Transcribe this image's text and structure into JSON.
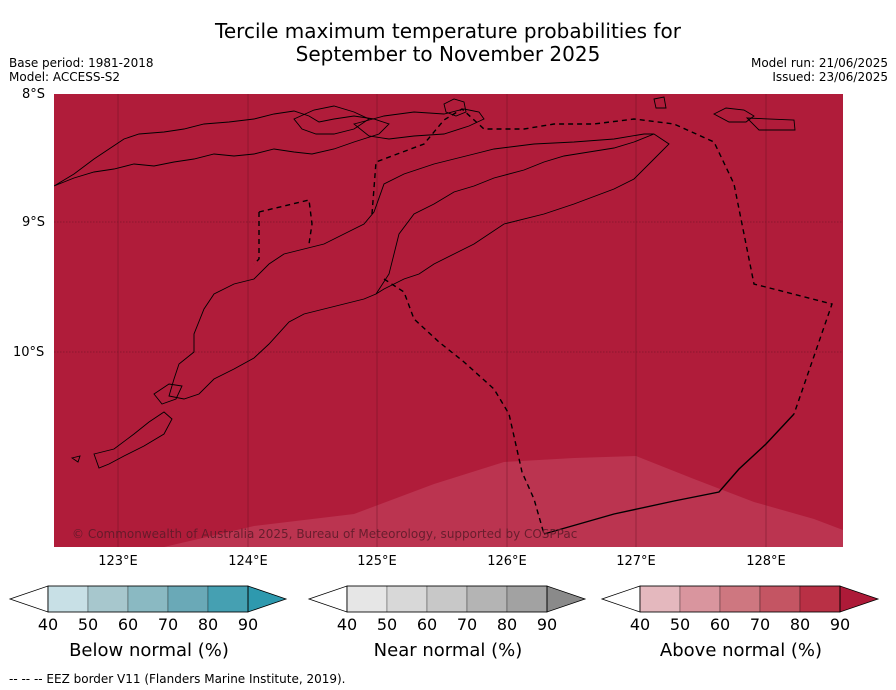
{
  "title": {
    "line1": "Tercile maximum temperature probabilities for",
    "line2": "September to November 2025"
  },
  "meta": {
    "base_period": "Base period: 1981-2018",
    "model": "Model: ACCESS-S2",
    "model_run": "Model run: 21/06/2025",
    "issued": "Issued: 23/06/2025"
  },
  "map": {
    "lat_labels": [
      "8°S",
      "9°S",
      "10°S"
    ],
    "lon_labels": [
      "123°E",
      "124°E",
      "125°E",
      "126°E",
      "127°E",
      "128°E"
    ],
    "copyright": "© Commonwealth of Australia 2025, Bureau of Meteorology, supported by COSPPac",
    "colors": {
      "above_90": "#b01c3a",
      "above_80": "#bb3450",
      "land_outline": "#000000",
      "eez": "#000000"
    }
  },
  "legends": [
    {
      "label": "Below normal (%)",
      "ticks": [
        "40",
        "50",
        "60",
        "70",
        "80",
        "90"
      ],
      "colors": [
        "#ffffff",
        "#c8e0e6",
        "#a7c7cd",
        "#8ab9c2",
        "#6aa9b7",
        "#45a0b2",
        "#2e99ae"
      ]
    },
    {
      "label": "Near normal (%)",
      "ticks": [
        "40",
        "50",
        "60",
        "70",
        "80",
        "90"
      ],
      "colors": [
        "#ffffff",
        "#e6e6e6",
        "#d8d8d8",
        "#c8c8c8",
        "#b4b4b4",
        "#a2a2a2",
        "#8a8a8a"
      ]
    },
    {
      "label": "Above normal (%)",
      "ticks": [
        "40",
        "50",
        "60",
        "70",
        "80",
        "90"
      ],
      "colors": [
        "#ffffff",
        "#e4b8be",
        "#d9959e",
        "#ce7780",
        "#c45563",
        "#b93045",
        "#ad1a38"
      ]
    }
  ],
  "footnote": "--  --  -- EEZ border V11 (Flanders Marine Institute, 2019)."
}
